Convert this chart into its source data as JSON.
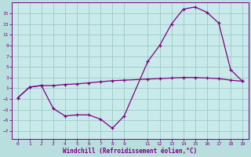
{
  "xlabel": "Windchill (Refroidissement éolien,°C)",
  "bg_color": "#b8dede",
  "plot_bg_color": "#c8eaea",
  "grid_color": "#a0c8c8",
  "line_color": "#800080",
  "x_ticks": [
    0,
    1,
    2,
    3,
    4,
    5,
    6,
    7,
    8,
    9,
    11,
    12,
    13,
    14,
    15,
    16,
    17,
    18,
    19
  ],
  "y_ticks": [
    -7,
    -5,
    -3,
    -1,
    1,
    3,
    5,
    7,
    9,
    11,
    13,
    15
  ],
  "ylim": [
    -8.5,
    17
  ],
  "xlim": [
    -0.5,
    19.5
  ],
  "line1_x": [
    0,
    1,
    2,
    3,
    4,
    5,
    6,
    7,
    8,
    9,
    11,
    12,
    13,
    14,
    15,
    16,
    17,
    18,
    19
  ],
  "line1_y": [
    -0.8,
    1.2,
    1.5,
    1.5,
    1.7,
    1.8,
    2.0,
    2.2,
    2.4,
    2.5,
    2.7,
    2.8,
    2.9,
    3.0,
    3.0,
    2.9,
    2.8,
    2.5,
    2.3
  ],
  "line2_x": [
    0,
    1,
    2,
    3,
    4,
    5,
    6,
    7,
    8,
    9,
    11,
    12,
    13,
    14,
    15,
    16,
    17,
    18,
    19
  ],
  "line2_y": [
    -0.8,
    1.2,
    1.5,
    -2.8,
    -4.2,
    -4.0,
    -4.0,
    -4.8,
    -6.5,
    -4.2,
    6.0,
    9.0,
    13.0,
    15.8,
    16.2,
    15.2,
    13.2,
    4.5,
    2.3
  ]
}
